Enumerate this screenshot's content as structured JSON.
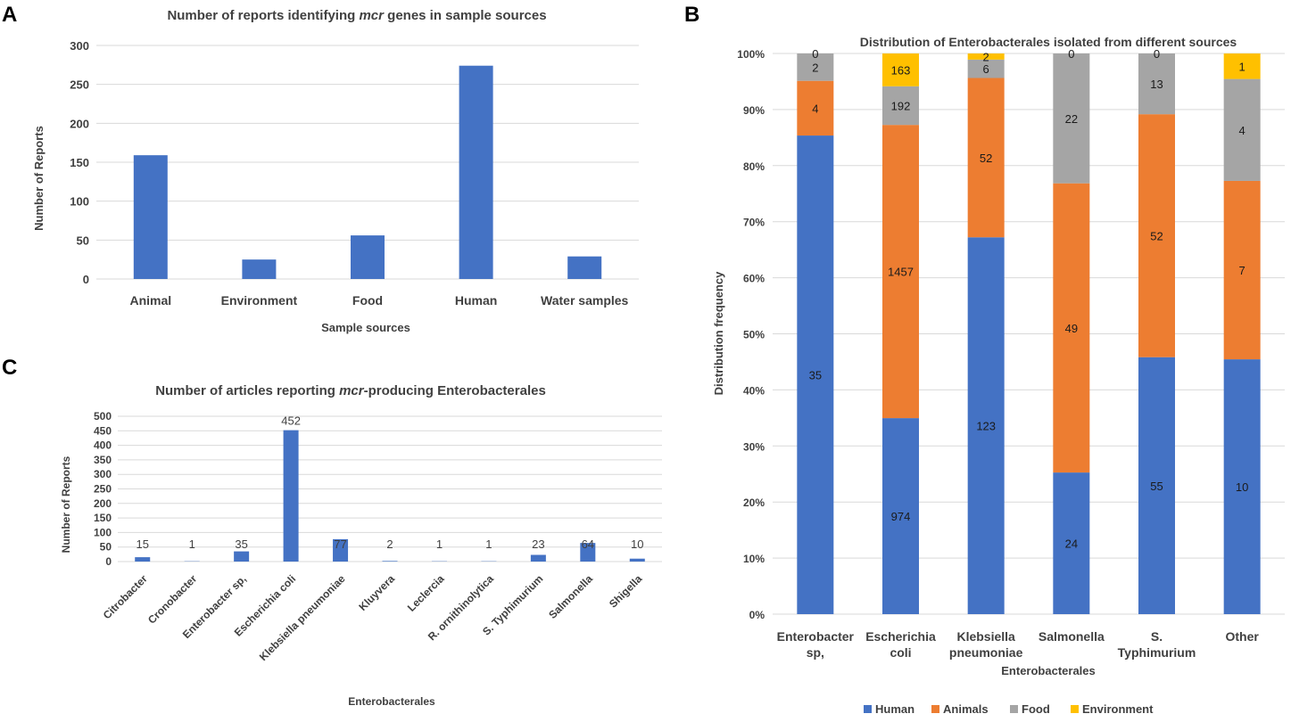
{
  "panels": {
    "a": {
      "letter": "A"
    },
    "b": {
      "letter": "B"
    },
    "c": {
      "letter": "C"
    }
  },
  "chart_data": [
    {
      "id": "A",
      "type": "bar",
      "title": "Number of reports identifying mcr genes in sample sources",
      "title_parts": {
        "pre": "Number of reports identifying ",
        "italic": "mcr",
        "post": " genes in sample sources"
      },
      "xlabel": "Sample sources",
      "ylabel": "Number of Reports",
      "categories": [
        "Animal",
        "Environment",
        "Food",
        "Human",
        "Water samples"
      ],
      "values": [
        159,
        25,
        56,
        274,
        29
      ],
      "ylim": [
        0,
        300
      ],
      "yticks": [
        0,
        50,
        100,
        150,
        200,
        250,
        300
      ],
      "grid": true,
      "color": "#4472C4"
    },
    {
      "id": "B",
      "type": "bar",
      "stacked": "percent",
      "title": "Distribution of Enterobacterales isolated from different sources",
      "xlabel": "Enterobacterales",
      "ylabel": "Distribution frequency",
      "categories": [
        [
          "Enterobacter",
          "sp,"
        ],
        [
          "Escherichia",
          "coli"
        ],
        [
          "Klebsiella",
          "pneumoniae"
        ],
        [
          "Salmonella"
        ],
        [
          "S.",
          "Typhimurium"
        ],
        [
          "Other"
        ]
      ],
      "series": [
        {
          "name": "Human",
          "color": "#4472C4",
          "values": [
            35,
            974,
            123,
            24,
            55,
            10
          ]
        },
        {
          "name": "Animals",
          "color": "#ED7D31",
          "values": [
            4,
            1457,
            52,
            49,
            52,
            7
          ]
        },
        {
          "name": "Food",
          "color": "#A5A5A5",
          "values": [
            2,
            192,
            6,
            22,
            13,
            4
          ]
        },
        {
          "name": "Environment",
          "color": "#FFC000",
          "values": [
            0,
            163,
            2,
            0,
            0,
            1
          ]
        }
      ],
      "yticks": [
        "0%",
        "10%",
        "20%",
        "30%",
        "40%",
        "50%",
        "60%",
        "70%",
        "80%",
        "90%",
        "100%"
      ],
      "ylim": [
        0,
        100
      ],
      "legend": "bottom",
      "grid": true
    },
    {
      "id": "C",
      "type": "bar",
      "title": "Number of articles reporting mcr-producing Enterobacterales",
      "title_parts": {
        "pre": "Number of articles reporting ",
        "italic": "mcr",
        "post": "-producing Enterobacterales"
      },
      "xlabel": "Enterobacterales",
      "ylabel": "Number of Reports",
      "categories": [
        "Citrobacter",
        "Cronobacter",
        "Enterobacter sp,",
        "Escherichia coli",
        "Klebsiella pneumoniae",
        "Kluyvera",
        "Leclercia",
        "R. ornithinolytica",
        "S. Typhimurium",
        "Salmonella",
        "Shigella"
      ],
      "values": [
        15,
        1,
        35,
        452,
        77,
        2,
        1,
        1,
        23,
        64,
        10
      ],
      "ylim": [
        0,
        500
      ],
      "yticks": [
        0,
        50,
        100,
        150,
        200,
        250,
        300,
        350,
        400,
        450,
        500
      ],
      "grid": true,
      "color": "#4472C4"
    }
  ]
}
